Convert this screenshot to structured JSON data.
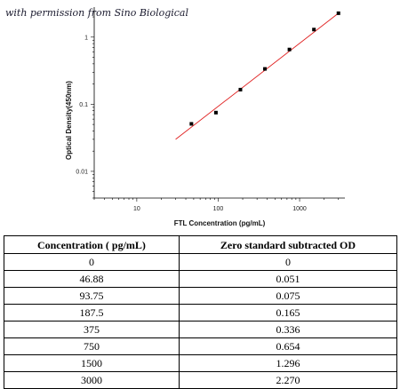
{
  "watermark": "with permission from Sino Biological",
  "chart_data": {
    "type": "scatter",
    "xlabel": "FTL Concentration (pg/mL)",
    "ylabel": "Optical Density(450nm)",
    "xscale": "log",
    "yscale": "log",
    "xlim": [
      3,
      3600
    ],
    "ylim": [
      0.004,
      2.8
    ],
    "xticks": [
      {
        "value": 10,
        "label": "10"
      },
      {
        "value": 100,
        "label": "100"
      },
      {
        "value": 1000,
        "label": "1000"
      }
    ],
    "yticks": [
      {
        "value": 0.01,
        "label": "0.01"
      },
      {
        "value": 0.1,
        "label": "0.1"
      },
      {
        "value": 1,
        "label": "1"
      }
    ],
    "grid": false,
    "series": [
      {
        "type": "scatter",
        "color": "#000000",
        "x": [
          46.88,
          93.75,
          187.5,
          375,
          750,
          1500,
          3000
        ],
        "y": [
          0.051,
          0.075,
          0.165,
          0.336,
          0.654,
          1.296,
          2.27
        ]
      },
      {
        "type": "line",
        "color": "#e02020",
        "x": [
          30,
          3000
        ],
        "y": [
          0.03,
          2.27
        ]
      }
    ]
  },
  "table": {
    "headers": [
      "Concentration ( pg/mL)",
      "Zero standard subtracted OD"
    ],
    "rows": [
      [
        "0",
        "0"
      ],
      [
        "46.88",
        "0.051"
      ],
      [
        "93.75",
        "0.075"
      ],
      [
        "187.5",
        "0.165"
      ],
      [
        "375",
        "0.336"
      ],
      [
        "750",
        "0.654"
      ],
      [
        "1500",
        "1.296"
      ],
      [
        "3000",
        "2.270"
      ]
    ]
  }
}
